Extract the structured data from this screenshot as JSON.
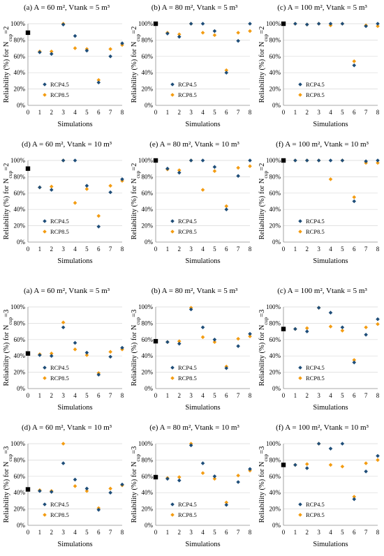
{
  "colors": {
    "rcp45": "#1f4e79",
    "rcp85": "#f39c12",
    "baseline": "#000000",
    "grid": "#d9d9d9"
  },
  "chart_data": [
    {
      "type": "scatter",
      "group": "ncup2",
      "title": "(a) A = 60 m², Vtank = 5 m³",
      "xlabel": "Simulations",
      "ylabel": "Reliability (%) for N_cup=2",
      "x": [
        0,
        1,
        2,
        3,
        4,
        5,
        6,
        7,
        8
      ],
      "xlim": [
        0,
        8
      ],
      "ylim": [
        0,
        100
      ],
      "yticks": [
        "0%",
        "20%",
        "40%",
        "60%",
        "80%",
        "100%"
      ],
      "baseline": 89,
      "series": [
        {
          "name": "RCP4.5",
          "x": [
            1,
            2,
            3,
            4,
            5,
            6,
            7,
            8
          ],
          "values": [
            65,
            63,
            99,
            85,
            67,
            28,
            60,
            76
          ]
        },
        {
          "name": "RCP8.5",
          "x": [
            1,
            2,
            3,
            4,
            5,
            6,
            7,
            8
          ],
          "values": [
            66,
            66,
            100,
            70,
            69,
            31,
            69,
            74
          ]
        }
      ]
    },
    {
      "type": "scatter",
      "group": "ncup2",
      "title": "(b) A = 80 m², Vtank = 5 m³",
      "xlabel": "Simulations",
      "ylabel": "Reliability (%) for N_cup=2",
      "x": [
        0,
        1,
        2,
        3,
        4,
        5,
        6,
        7,
        8
      ],
      "xlim": [
        0,
        8
      ],
      "ylim": [
        0,
        100
      ],
      "yticks": [
        "0%",
        "20%",
        "40%",
        "60%",
        "80%",
        "100%"
      ],
      "baseline": 100,
      "series": [
        {
          "name": "RCP4.5",
          "x": [
            1,
            2,
            3,
            4,
            5,
            6,
            7,
            8
          ],
          "values": [
            88,
            84,
            100,
            100,
            91,
            40,
            79,
            100
          ]
        },
        {
          "name": "RCP8.5",
          "x": [
            1,
            2,
            3,
            4,
            5,
            6,
            7,
            8
          ],
          "values": [
            89,
            87,
            100,
            89,
            86,
            43,
            89,
            91
          ]
        }
      ]
    },
    {
      "type": "scatter",
      "group": "ncup2",
      "title": "(c) A = 100 m², Vtank = 5 m³",
      "xlabel": "Simulations",
      "ylabel": "Reliability (%) for N_cup=2",
      "x": [
        0,
        1,
        2,
        3,
        4,
        5,
        6,
        7,
        8
      ],
      "xlim": [
        0,
        8
      ],
      "ylim": [
        0,
        100
      ],
      "yticks": [
        "0%",
        "20%",
        "40%",
        "60%",
        "80%",
        "100%"
      ],
      "baseline": 100,
      "series": [
        {
          "name": "RCP4.5",
          "x": [
            1,
            2,
            3,
            4,
            5,
            6,
            7,
            8
          ],
          "values": [
            100,
            99,
            100,
            100,
            100,
            49,
            97,
            100
          ]
        },
        {
          "name": "RCP8.5",
          "x": [
            1,
            2,
            3,
            4,
            5,
            6,
            7,
            8
          ],
          "values": [
            100,
            99,
            100,
            98,
            100,
            54,
            98,
            97
          ]
        }
      ]
    },
    {
      "type": "scatter",
      "group": "ncup2",
      "title": "(d) A = 60 m², Vtank = 10 m³",
      "xlabel": "Simulations",
      "ylabel": "Reliability (%) for N_cup=2",
      "x": [
        0,
        1,
        2,
        3,
        4,
        5,
        6,
        7,
        8
      ],
      "xlim": [
        0,
        8
      ],
      "ylim": [
        0,
        100
      ],
      "yticks": [
        "0%",
        "20%",
        "40%",
        "60%",
        "80%",
        "100%"
      ],
      "baseline": 90,
      "series": [
        {
          "name": "RCP4.5",
          "x": [
            1,
            2,
            3,
            4,
            5,
            6,
            7,
            8
          ],
          "values": [
            67,
            64,
            100,
            100,
            69,
            19,
            61,
            77
          ]
        },
        {
          "name": "RCP8.5",
          "x": [
            1,
            2,
            3,
            4,
            5,
            6,
            7,
            8
          ],
          "values": [
            67,
            68,
            100,
            48,
            65,
            32,
            69,
            75
          ]
        }
      ]
    },
    {
      "type": "scatter",
      "group": "ncup2",
      "title": "(e) A = 80 m², Vtank = 10 m³",
      "xlabel": "Simulations",
      "ylabel": "Reliability (%) for N_cup=2",
      "x": [
        0,
        1,
        2,
        3,
        4,
        5,
        6,
        7,
        8
      ],
      "xlim": [
        0,
        8
      ],
      "ylim": [
        0,
        100
      ],
      "yticks": [
        "0%",
        "20%",
        "40%",
        "60%",
        "80%",
        "100%"
      ],
      "baseline": 100,
      "series": [
        {
          "name": "RCP4.5",
          "x": [
            1,
            2,
            3,
            4,
            5,
            6,
            7,
            8
          ],
          "values": [
            90,
            85,
            100,
            100,
            92,
            40,
            81,
            100
          ]
        },
        {
          "name": "RCP8.5",
          "x": [
            1,
            2,
            3,
            4,
            5,
            6,
            7,
            8
          ],
          "values": [
            89,
            88,
            100,
            64,
            87,
            44,
            91,
            93
          ]
        }
      ]
    },
    {
      "type": "scatter",
      "group": "ncup2",
      "title": "(f) A = 100 m², Vtank = 10 m³",
      "xlabel": "Simulations",
      "ylabel": "Reliability (%) for N_cup=2",
      "x": [
        0,
        1,
        2,
        3,
        4,
        5,
        6,
        7,
        8
      ],
      "xlim": [
        0,
        8
      ],
      "ylim": [
        0,
        100
      ],
      "yticks": [
        "0%",
        "20%",
        "40%",
        "60%",
        "80%",
        "100%"
      ],
      "baseline": 100,
      "series": [
        {
          "name": "RCP4.5",
          "x": [
            1,
            2,
            3,
            4,
            5,
            6,
            7,
            8
          ],
          "values": [
            100,
            100,
            100,
            100,
            100,
            50,
            99,
            100
          ]
        },
        {
          "name": "RCP8.5",
          "x": [
            1,
            2,
            3,
            4,
            5,
            6,
            7,
            8
          ],
          "values": [
            100,
            100,
            100,
            77,
            100,
            55,
            97,
            97
          ]
        }
      ]
    },
    {
      "type": "scatter",
      "group": "ncup3",
      "title": "(a) A = 60 m², Vtank = 5 m³",
      "xlabel": "Simulations",
      "ylabel": "Reliability (%) for N_cup=3",
      "x": [
        0,
        1,
        2,
        3,
        4,
        5,
        6,
        7,
        8
      ],
      "xlim": [
        0,
        8
      ],
      "ylim": [
        0,
        100
      ],
      "yticks": [
        "0%",
        "20%",
        "40%",
        "60%",
        "80%",
        "100%"
      ],
      "baseline": 43,
      "series": [
        {
          "name": "RCP4.5",
          "x": [
            1,
            2,
            3,
            4,
            5,
            6,
            7,
            8
          ],
          "values": [
            41,
            40,
            75,
            56,
            44,
            17,
            39,
            50
          ]
        },
        {
          "name": "RCP8.5",
          "x": [
            1,
            2,
            3,
            4,
            5,
            6,
            7,
            8
          ],
          "values": [
            42,
            43,
            81,
            48,
            41,
            19,
            45,
            48
          ]
        }
      ]
    },
    {
      "type": "scatter",
      "group": "ncup3",
      "title": "(b) A = 80 m², Vtank = 5 m³",
      "xlabel": "Simulations",
      "ylabel": "Reliability (%) for N_cup=3",
      "x": [
        0,
        1,
        2,
        3,
        4,
        5,
        6,
        7,
        8
      ],
      "xlim": [
        0,
        8
      ],
      "ylim": [
        0,
        100
      ],
      "yticks": [
        "0%",
        "20%",
        "40%",
        "60%",
        "80%",
        "100%"
      ],
      "baseline": 58,
      "series": [
        {
          "name": "RCP4.5",
          "x": [
            1,
            2,
            3,
            4,
            5,
            6,
            7,
            8
          ],
          "values": [
            57,
            55,
            97,
            75,
            60,
            25,
            52,
            67
          ]
        },
        {
          "name": "RCP8.5",
          "x": [
            1,
            2,
            3,
            4,
            5,
            6,
            7,
            8
          ],
          "values": [
            57,
            58,
            99,
            63,
            57,
            27,
            61,
            64
          ]
        }
      ]
    },
    {
      "type": "scatter",
      "group": "ncup3",
      "title": "(c) A = 100 m², Vtank = 5 m³",
      "xlabel": "Simulations",
      "ylabel": "Reliability (%) for N_cup=3",
      "x": [
        0,
        1,
        2,
        3,
        4,
        5,
        6,
        7,
        8
      ],
      "xlim": [
        0,
        8
      ],
      "ylim": [
        0,
        100
      ],
      "yticks": [
        "0%",
        "20%",
        "40%",
        "60%",
        "80%",
        "100%"
      ],
      "baseline": 73,
      "series": [
        {
          "name": "RCP4.5",
          "x": [
            1,
            2,
            3,
            4,
            5,
            6,
            7,
            8
          ],
          "values": [
            73,
            70,
            99,
            93,
            75,
            32,
            66,
            85
          ]
        },
        {
          "name": "RCP8.5",
          "x": [
            1,
            2,
            3,
            4,
            5,
            6,
            7,
            8
          ],
          "values": [
            73,
            74,
            99,
            76,
            71,
            35,
            75,
            79
          ]
        }
      ]
    },
    {
      "type": "scatter",
      "group": "ncup3",
      "title": "(d) A = 60 m², Vtank = 10 m³",
      "xlabel": "Simulations",
      "ylabel": "Reliability (%) for N_cup=3",
      "x": [
        0,
        1,
        2,
        3,
        4,
        5,
        6,
        7,
        8
      ],
      "xlim": [
        0,
        8
      ],
      "ylim": [
        0,
        100
      ],
      "yticks": [
        "0%",
        "20%",
        "40%",
        "60%",
        "80%",
        "100%"
      ],
      "baseline": 44,
      "series": [
        {
          "name": "RCP4.5",
          "x": [
            1,
            2,
            3,
            4,
            5,
            6,
            7,
            8
          ],
          "values": [
            42,
            41,
            76,
            56,
            45,
            19,
            40,
            50
          ]
        },
        {
          "name": "RCP8.5",
          "x": [
            1,
            2,
            3,
            4,
            5,
            6,
            7,
            8
          ],
          "values": [
            43,
            42,
            100,
            48,
            42,
            21,
            45,
            49
          ]
        }
      ]
    },
    {
      "type": "scatter",
      "group": "ncup3",
      "title": "(e) A = 80 m², Vtank = 10 m³",
      "xlabel": "Simulations",
      "ylabel": "Reliability (%) for N_cup=3",
      "x": [
        0,
        1,
        2,
        3,
        4,
        5,
        6,
        7,
        8
      ],
      "xlim": [
        0,
        8
      ],
      "ylim": [
        0,
        100
      ],
      "yticks": [
        "0%",
        "20%",
        "40%",
        "60%",
        "80%",
        "100%"
      ],
      "baseline": 59,
      "series": [
        {
          "name": "RCP4.5",
          "x": [
            1,
            2,
            3,
            4,
            5,
            6,
            7,
            8
          ],
          "values": [
            57,
            55,
            98,
            76,
            60,
            25,
            53,
            69
          ]
        },
        {
          "name": "RCP8.5",
          "x": [
            1,
            2,
            3,
            4,
            5,
            6,
            7,
            8
          ],
          "values": [
            58,
            59,
            100,
            64,
            57,
            28,
            61,
            67
          ]
        }
      ]
    },
    {
      "type": "scatter",
      "group": "ncup3",
      "title": "(f) A = 100 m², Vtank = 10 m³",
      "xlabel": "Simulations",
      "ylabel": "Reliability (%) for N_cup=3",
      "x": [
        0,
        1,
        2,
        3,
        4,
        5,
        6,
        7,
        8
      ],
      "xlim": [
        0,
        8
      ],
      "ylim": [
        0,
        100
      ],
      "yticks": [
        "0%",
        "20%",
        "40%",
        "60%",
        "80%",
        "100%"
      ],
      "baseline": 74,
      "series": [
        {
          "name": "RCP4.5",
          "x": [
            1,
            2,
            3,
            4,
            5,
            6,
            7,
            8
          ],
          "values": [
            74,
            70,
            100,
            94,
            100,
            32,
            66,
            85
          ]
        },
        {
          "name": "RCP8.5",
          "x": [
            1,
            2,
            3,
            4,
            5,
            6,
            7,
            8
          ],
          "values": [
            74,
            75,
            100,
            74,
            72,
            35,
            76,
            80
          ]
        }
      ]
    }
  ]
}
